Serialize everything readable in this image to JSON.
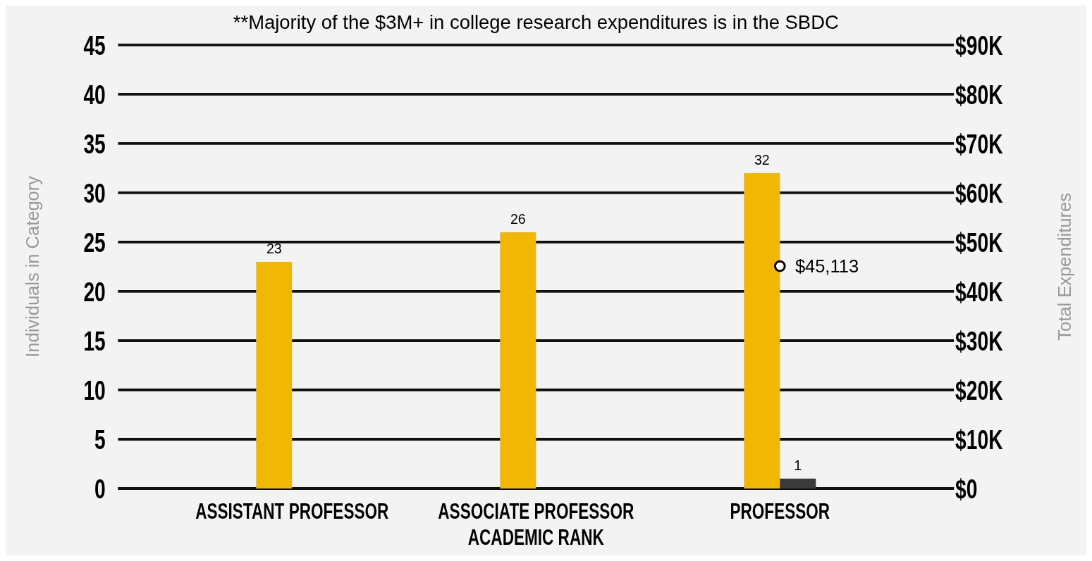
{
  "chart_data": {
    "type": "bar",
    "title": "**Majority of the $3M+ in college research expenditures is in the SBDC",
    "xlabel": "ACADEMIC RANK",
    "ylabel": "Individuals in Category",
    "y2label": "Total Expenditures",
    "categories": [
      "ASSISTANT PROFESSOR",
      "ASSOCIATE PROFESSOR",
      "PROFESSOR"
    ],
    "series": [
      {
        "color": "#f2b705",
        "values": [
          23,
          26,
          32
        ],
        "value_labels": [
          "23",
          "26",
          "32"
        ]
      },
      {
        "type": "bar",
        "color": "#3a3a3a",
        "values": [
          null,
          null,
          1
        ],
        "value_labels": [
          null,
          null,
          "1"
        ]
      },
      {
        "type": "scatter",
        "axis": "y2",
        "color": "#000000",
        "marker": "circle",
        "values": [
          null,
          null,
          45113
        ],
        "value_labels": [
          null,
          null,
          "$45,113"
        ]
      }
    ],
    "ylim": [
      0,
      45
    ],
    "yticks": [
      0,
      5,
      10,
      15,
      20,
      25,
      30,
      35,
      40,
      45
    ],
    "y2lim": [
      0,
      90000
    ],
    "y2ticks": [
      {
        "value": 0,
        "label": "$0"
      },
      {
        "value": 10000,
        "label": "$10K"
      },
      {
        "value": 20000,
        "label": "$20K"
      },
      {
        "value": 30000,
        "label": "$30K"
      },
      {
        "value": 40000,
        "label": "$40K"
      },
      {
        "value": 50000,
        "label": "$50K"
      },
      {
        "value": 60000,
        "label": "$60K"
      },
      {
        "value": 70000,
        "label": "$70K"
      },
      {
        "value": 80000,
        "label": "$80K"
      },
      {
        "value": 90000,
        "label": "$90K"
      }
    ],
    "grid": "y"
  }
}
